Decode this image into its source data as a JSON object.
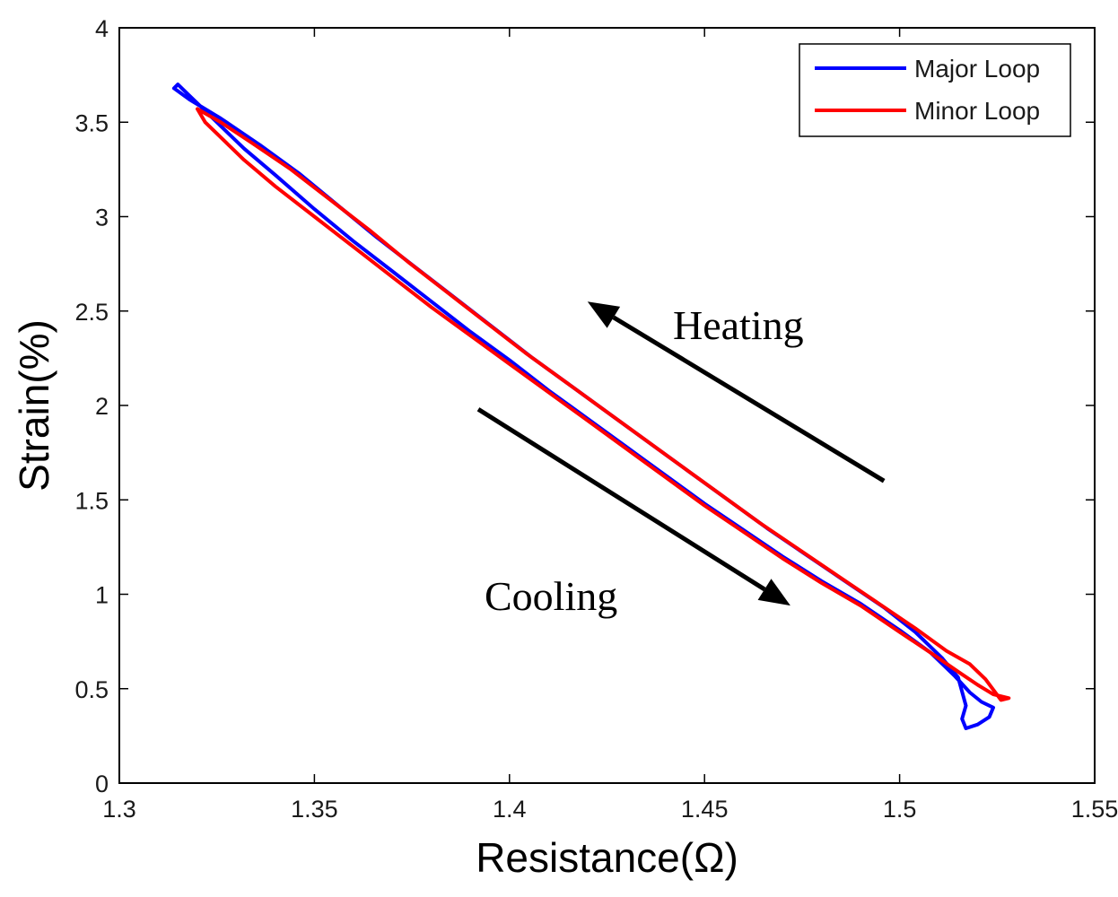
{
  "chart_data": {
    "type": "line",
    "title": "",
    "xlabel": "Resistance(Ω)",
    "ylabel": "Strain(%)",
    "xlim": [
      1.3,
      1.55
    ],
    "ylim": [
      0,
      4
    ],
    "xticks": [
      "1.3",
      "1.35",
      "1.4",
      "1.45",
      "1.5",
      "1.55"
    ],
    "yticks": [
      "0",
      "0.5",
      "1",
      "1.5",
      "2",
      "2.5",
      "3",
      "3.5",
      "4"
    ],
    "grid": false,
    "legend_position": "top-right",
    "series": [
      {
        "name": "Major Loop",
        "color": "#0000ff",
        "x": [
          1.314,
          1.315,
          1.318,
          1.322,
          1.326,
          1.332,
          1.34,
          1.35,
          1.36,
          1.37,
          1.38,
          1.39,
          1.4,
          1.41,
          1.42,
          1.43,
          1.44,
          1.45,
          1.46,
          1.47,
          1.48,
          1.49,
          1.5,
          1.508,
          1.514,
          1.518,
          1.521,
          1.524,
          1.523,
          1.52,
          1.517,
          1.516,
          1.517,
          1.515,
          1.511,
          1.504,
          1.496,
          1.486,
          1.476,
          1.466,
          1.456,
          1.446,
          1.436,
          1.426,
          1.416,
          1.406,
          1.396,
          1.386,
          1.376,
          1.366,
          1.356,
          1.346,
          1.336,
          1.326,
          1.318,
          1.314
        ],
        "y": [
          3.68,
          3.7,
          3.64,
          3.56,
          3.48,
          3.36,
          3.22,
          3.04,
          2.87,
          2.71,
          2.55,
          2.39,
          2.24,
          2.08,
          1.93,
          1.78,
          1.63,
          1.48,
          1.34,
          1.2,
          1.07,
          0.95,
          0.81,
          0.69,
          0.57,
          0.48,
          0.43,
          0.4,
          0.35,
          0.31,
          0.29,
          0.34,
          0.41,
          0.56,
          0.66,
          0.8,
          0.93,
          1.07,
          1.21,
          1.35,
          1.5,
          1.65,
          1.8,
          1.95,
          2.1,
          2.25,
          2.41,
          2.57,
          2.73,
          2.89,
          3.06,
          3.23,
          3.38,
          3.52,
          3.62,
          3.68
        ]
      },
      {
        "name": "Minor Loop",
        "color": "#ff0000",
        "x": [
          1.32,
          1.322,
          1.326,
          1.332,
          1.34,
          1.35,
          1.36,
          1.37,
          1.38,
          1.39,
          1.4,
          1.41,
          1.42,
          1.43,
          1.44,
          1.45,
          1.46,
          1.47,
          1.48,
          1.49,
          1.5,
          1.508,
          1.515,
          1.52,
          1.524,
          1.528,
          1.526,
          1.522,
          1.518,
          1.512,
          1.504,
          1.494,
          1.484,
          1.474,
          1.464,
          1.454,
          1.444,
          1.434,
          1.424,
          1.414,
          1.404,
          1.394,
          1.384,
          1.374,
          1.364,
          1.354,
          1.344,
          1.334,
          1.326,
          1.32
        ],
        "y": [
          3.57,
          3.5,
          3.42,
          3.3,
          3.16,
          3.0,
          2.84,
          2.68,
          2.52,
          2.37,
          2.22,
          2.07,
          1.92,
          1.77,
          1.62,
          1.47,
          1.33,
          1.19,
          1.06,
          0.94,
          0.8,
          0.69,
          0.59,
          0.52,
          0.47,
          0.45,
          0.44,
          0.55,
          0.63,
          0.7,
          0.82,
          0.96,
          1.1,
          1.24,
          1.38,
          1.53,
          1.68,
          1.83,
          1.98,
          2.13,
          2.28,
          2.44,
          2.6,
          2.76,
          2.93,
          3.09,
          3.25,
          3.39,
          3.5,
          3.57
        ]
      }
    ],
    "annotations": [
      {
        "text": "Heating",
        "arrow_from": [
          1.496,
          1.6
        ],
        "arrow_to": [
          1.42,
          2.55
        ]
      },
      {
        "text": "Cooling",
        "arrow_from": [
          1.392,
          1.98
        ],
        "arrow_to": [
          1.472,
          0.94
        ]
      }
    ]
  }
}
